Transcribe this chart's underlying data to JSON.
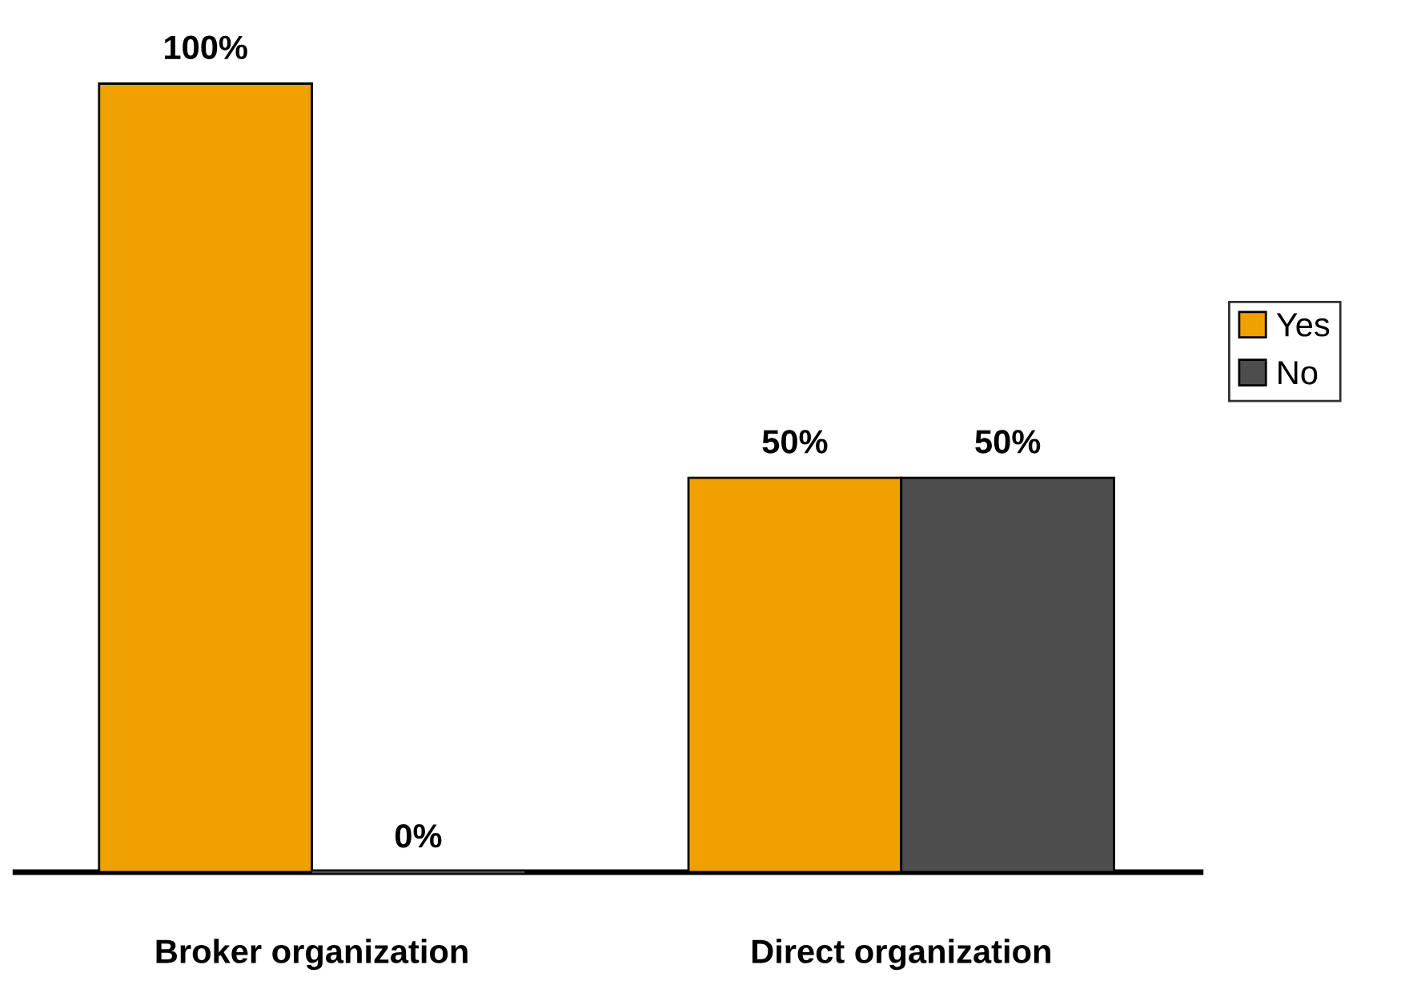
{
  "chart_data": {
    "type": "bar",
    "categories": [
      "Broker organization",
      "Direct organization"
    ],
    "series": [
      {
        "name": "Yes",
        "color": "#f0a000",
        "values": [
          100,
          50
        ],
        "value_labels": [
          "100%",
          "50%"
        ]
      },
      {
        "name": "No",
        "color": "#4d4d4d",
        "values": [
          0,
          50
        ],
        "value_labels": [
          "0%",
          "50%"
        ]
      }
    ],
    "legend": "right",
    "grid": false
  }
}
